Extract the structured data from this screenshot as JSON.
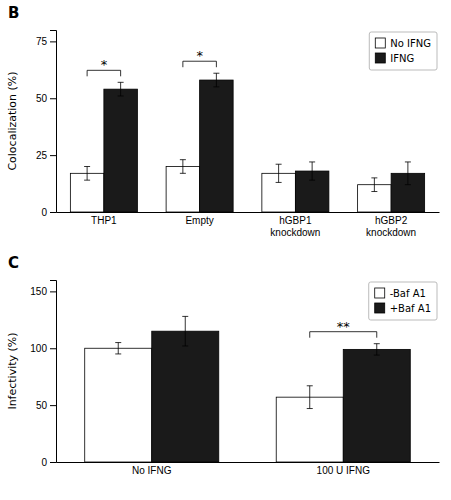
{
  "chart_data": [
    {
      "type": "bar",
      "title": "B",
      "categories": [
        "THP1",
        "Empty",
        "hGBP1\nknockdown",
        "hGBP2\nknockdown"
      ],
      "series": [
        {
          "name": "No IFNG",
          "color": "#ffffff",
          "values": [
            17,
            20,
            17,
            12
          ],
          "errors": [
            3,
            3,
            4,
            3
          ]
        },
        {
          "name": "IFNG",
          "color": "#1a1a1a",
          "values": [
            54,
            58,
            18,
            17
          ],
          "errors": [
            3,
            3,
            4,
            5
          ]
        }
      ],
      "ylabel": "Colocalization (%)",
      "ylim": [
        0,
        80
      ],
      "yticks": [
        0,
        25,
        50,
        75
      ],
      "legend": "upper right",
      "grid": false,
      "annotations": [
        {
          "text": "*",
          "x": "THP1"
        },
        {
          "text": "*",
          "x": "Empty"
        }
      ]
    },
    {
      "type": "bar",
      "title": "C",
      "categories": [
        "No IFNG",
        "100 U IFNG"
      ],
      "series": [
        {
          "name": "-Baf A1",
          "color": "#ffffff",
          "values": [
            100,
            57
          ],
          "errors": [
            5,
            10
          ]
        },
        {
          "name": "+Baf A1",
          "color": "#1a1a1a",
          "values": [
            115,
            99
          ],
          "errors": [
            13,
            5
          ]
        }
      ],
      "ylabel": "Infectivity (%)",
      "ylim": [
        0,
        160
      ],
      "yticks": [
        0,
        50,
        100,
        150
      ],
      "legend": "upper right",
      "grid": false,
      "annotations": [
        {
          "text": "**",
          "x": "100 U IFNG"
        }
      ]
    }
  ]
}
